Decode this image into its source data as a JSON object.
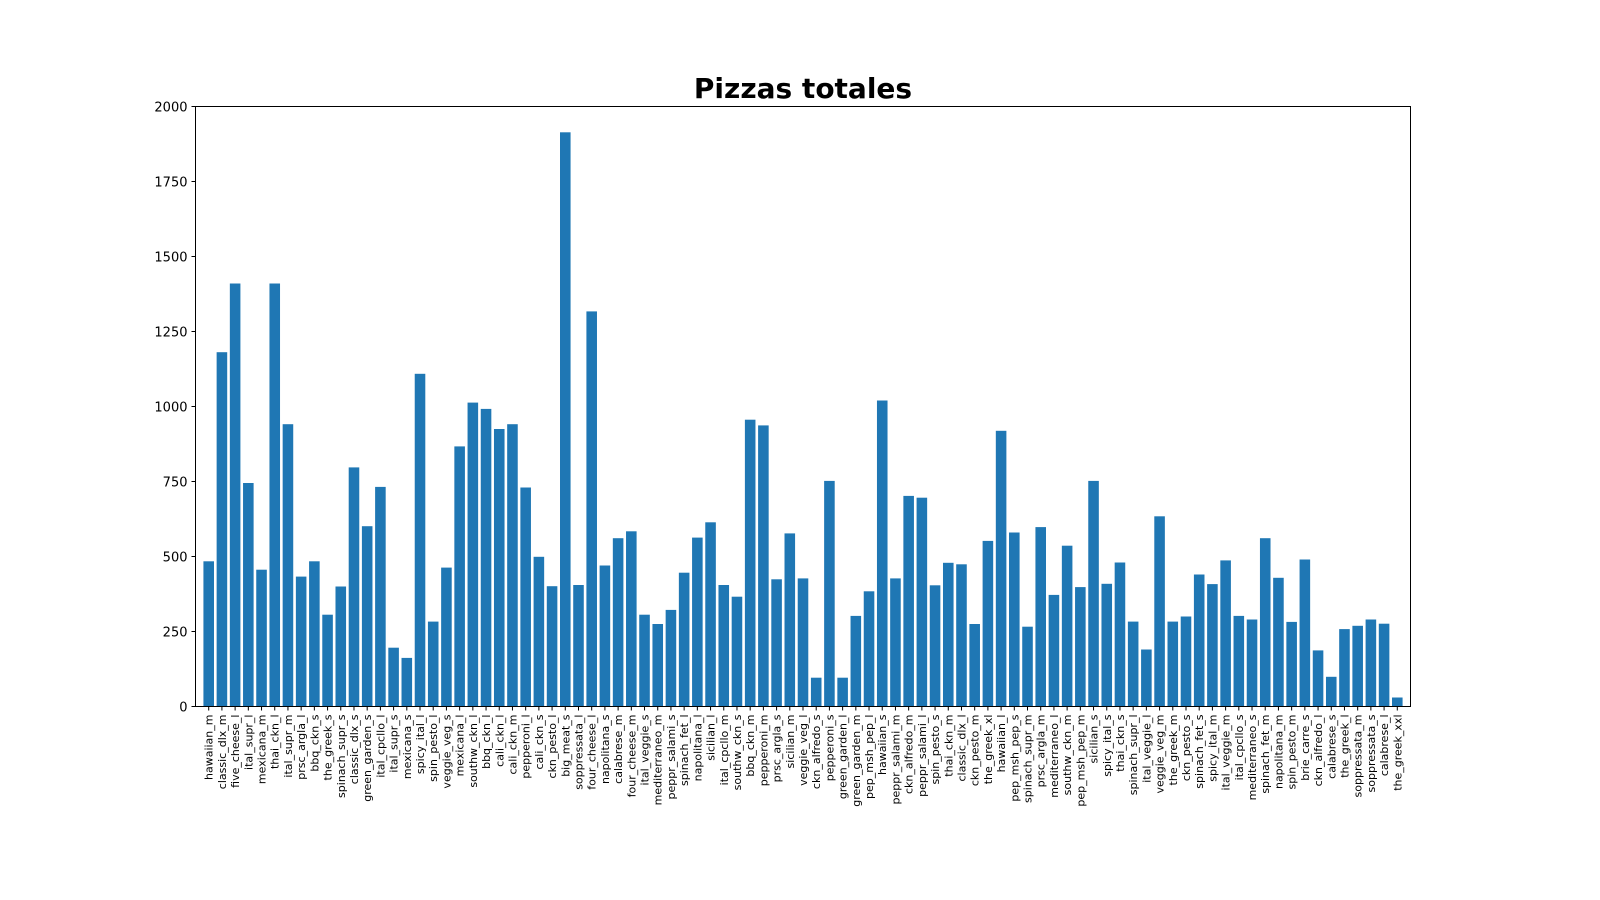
{
  "chart_data": {
    "type": "bar",
    "title": "Pizzas totales",
    "xlabel": "",
    "ylabel": "",
    "ylim": [
      0,
      2000
    ],
    "yticks": [
      0,
      250,
      500,
      750,
      1000,
      1250,
      1500,
      1750,
      2000
    ],
    "ytick_labels": [
      "0",
      "250",
      "500",
      "750",
      "1000",
      "1250",
      "1500",
      "1750",
      "2000"
    ],
    "grid": false,
    "bar_color": "#1f77b4",
    "categories": [
      "hawaiian_m",
      "classic_dlx_m",
      "five_cheese_l",
      "ital_supr_l",
      "mexicana_m",
      "thai_ckn_l",
      "ital_supr_m",
      "prsc_argla_l",
      "bbq_ckn_s",
      "the_greek_s",
      "spinach_supr_s",
      "classic_dlx_s",
      "green_garden_s",
      "ital_cpcllo_l",
      "ital_supr_s",
      "mexicana_s",
      "spicy_ital_l",
      "spin_pesto_l",
      "veggie_veg_s",
      "mexicana_l",
      "southw_ckn_l",
      "bbq_ckn_l",
      "cali_ckn_l",
      "cali_ckn_m",
      "pepperoni_l",
      "cali_ckn_s",
      "ckn_pesto_l",
      "big_meat_s",
      "soppressata_l",
      "four_cheese_l",
      "napolitana_s",
      "calabrese_m",
      "four_cheese_m",
      "ital_veggie_s",
      "mediterraneo_m",
      "peppr_salami_s",
      "spinach_fet_l",
      "napolitana_l",
      "sicilian_l",
      "ital_cpcllo_m",
      "southw_ckn_s",
      "bbq_ckn_m",
      "pepperoni_m",
      "prsc_argla_s",
      "sicilian_m",
      "veggie_veg_l",
      "ckn_alfredo_s",
      "pepperoni_s",
      "green_garden_l",
      "green_garden_m",
      "pep_msh_pep_l",
      "hawaiian_s",
      "peppr_salami_m",
      "ckn_alfredo_m",
      "peppr_salami_l",
      "spin_pesto_s",
      "thai_ckn_m",
      "classic_dlx_l",
      "ckn_pesto_m",
      "the_greek_xl",
      "hawaiian_l",
      "pep_msh_pep_s",
      "spinach_supr_m",
      "prsc_argla_m",
      "mediterraneo_l",
      "southw_ckn_m",
      "pep_msh_pep_m",
      "sicilian_s",
      "spicy_ital_s",
      "thai_ckn_s",
      "spinach_supr_l",
      "ital_veggie_l",
      "veggie_veg_m",
      "the_greek_m",
      "ckn_pesto_s",
      "spinach_fet_s",
      "spicy_ital_m",
      "ital_veggie_m",
      "ital_cpcllo_s",
      "mediterraneo_s",
      "spinach_fet_m",
      "napolitana_m",
      "spin_pesto_m",
      "brie_carre_s",
      "ckn_alfredo_l",
      "calabrese_s",
      "the_greek_l",
      "soppressata_m",
      "soppressata_s",
      "calabrese_l",
      "the_greek_xxl"
    ],
    "values": [
      484,
      1181,
      1410,
      745,
      456,
      1410,
      941,
      433,
      484,
      306,
      400,
      797,
      601,
      732,
      196,
      162,
      1109,
      283,
      463,
      867,
      1013,
      992,
      925,
      941,
      730,
      499,
      401,
      1914,
      405,
      1317,
      470,
      561,
      584,
      306,
      275,
      322,
      446,
      563,
      614,
      405,
      366,
      956,
      937,
      424,
      577,
      427,
      96,
      752,
      96,
      302,
      384,
      1020,
      427,
      702,
      696,
      404,
      479,
      474,
      275,
      552,
      919,
      580,
      266,
      598,
      372,
      536,
      398,
      752,
      409,
      480,
      283,
      190,
      634,
      283,
      300,
      440,
      408,
      487,
      302,
      290,
      561,
      429,
      282,
      490,
      187,
      99,
      258,
      269,
      290,
      276,
      30
    ]
  }
}
